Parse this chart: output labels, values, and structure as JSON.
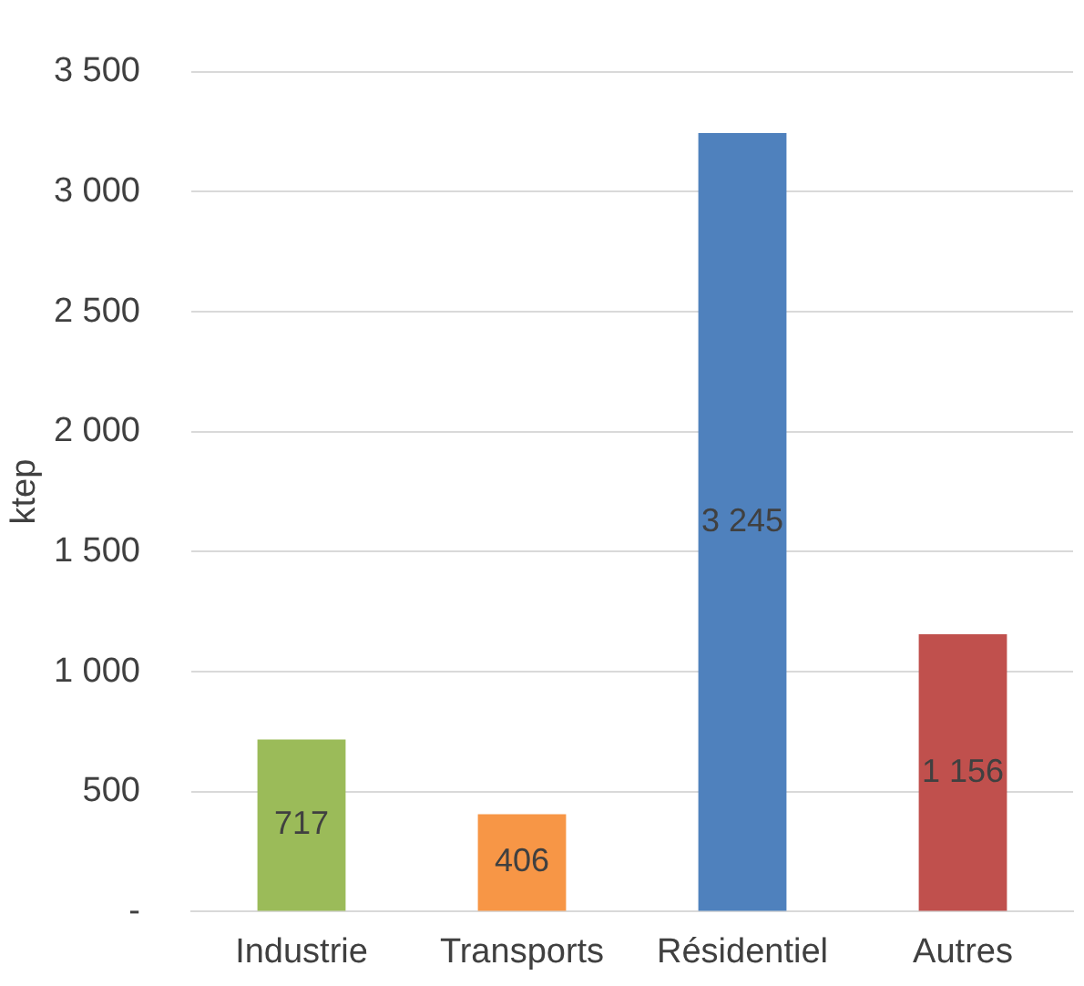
{
  "chart_data": {
    "type": "bar",
    "ylabel": "ktep",
    "categories": [
      "Industrie",
      "Transports",
      "Résidentiel",
      "Autres"
    ],
    "values": [
      717,
      406,
      3245,
      1156
    ],
    "colors": [
      "#9bbb59",
      "#f79646",
      "#4f81bd",
      "#c0504d"
    ],
    "value_labels": [
      "717",
      "406",
      "3 245",
      "1 156"
    ],
    "ylim": [
      0,
      3500
    ],
    "yticks": [
      {
        "value": 0,
        "label": "-"
      },
      500,
      {
        "value": 1000,
        "label": "1 000"
      },
      {
        "value": 1500,
        "label": "1 500"
      },
      {
        "value": 2000,
        "label": "2 000"
      },
      {
        "value": 2500,
        "label": "2 500"
      },
      {
        "value": 3000,
        "label": "3 000"
      },
      {
        "value": 3500,
        "label": "3 500"
      }
    ],
    "grid": "y",
    "legend": false
  }
}
